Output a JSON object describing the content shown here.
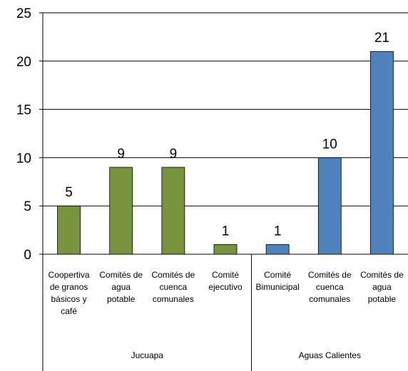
{
  "chart_data": {
    "type": "bar",
    "ylim": [
      0,
      25
    ],
    "yticks": [
      "0",
      "5",
      "10",
      "15",
      "20",
      "25"
    ],
    "grid": true,
    "legend": "none",
    "groups": [
      {
        "label": "Jucuapa",
        "color": "#77933C",
        "start": 0,
        "count": 4
      },
      {
        "label": "Aguas Calientes",
        "color": "#4F81BD",
        "start": 4,
        "count": 3
      }
    ],
    "categories": [
      [
        "Coopertiva",
        "de granos",
        "básicos y",
        "café"
      ],
      [
        "Comités de",
        "agua",
        "potable"
      ],
      [
        "Comités de",
        "cuenca",
        "comunales"
      ],
      [
        "Comité",
        "ejecutivo"
      ],
      [
        "Comité",
        "Bimunicipal"
      ],
      [
        "Comités de",
        "cuenca",
        "comunales"
      ],
      [
        "Comités de",
        "agua",
        "potable"
      ]
    ],
    "values": [
      5,
      9,
      9,
      1,
      1,
      10,
      21
    ],
    "data_labels": [
      "5",
      "9",
      "9",
      "1",
      "1",
      "10",
      "21"
    ]
  }
}
